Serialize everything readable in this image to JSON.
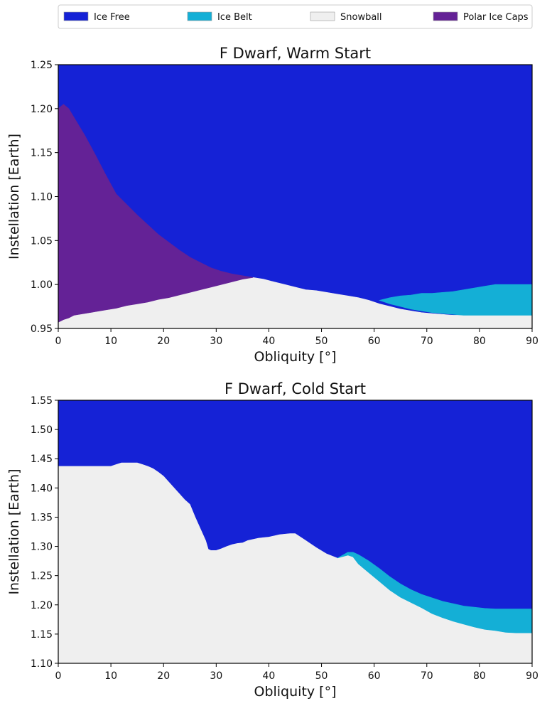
{
  "colors": {
    "ice_free": "#1522d6",
    "ice_belt": "#14afd6",
    "snowball": "#efefef",
    "polar_ice_caps": "#642296"
  },
  "legend": {
    "placement": "top",
    "entries": [
      {
        "label": "Ice Free",
        "color": "#1522d6"
      },
      {
        "label": "Ice Belt",
        "color": "#14afd6"
      },
      {
        "label": "Snowball",
        "color": "#efefef"
      },
      {
        "label": "Polar Ice Caps",
        "color": "#642296"
      }
    ]
  },
  "chart_data": [
    {
      "type": "area",
      "title": "F Dwarf, Warm Start",
      "xlabel": "Obliquity [°]",
      "ylabel": "Instellation [Earth]",
      "xlim": [
        0,
        90
      ],
      "ylim": [
        0.95,
        1.25
      ],
      "xticks": [
        "0",
        "10",
        "20",
        "30",
        "40",
        "50",
        "60",
        "70",
        "80",
        "90"
      ],
      "yticks": [
        "0.95",
        "1.00",
        "1.05",
        "1.10",
        "1.15",
        "1.20",
        "1.25"
      ],
      "grid": false,
      "background_region": "Ice Free",
      "regions": [
        {
          "name": "Snowball",
          "x": [
            0,
            1,
            2,
            3,
            5,
            7,
            9,
            11,
            13,
            15,
            17,
            19,
            21,
            23,
            25,
            27,
            29,
            31,
            33,
            35,
            37,
            39,
            41,
            43,
            45,
            47,
            49,
            51,
            53,
            55,
            57,
            59,
            61,
            63,
            65,
            67,
            69,
            71,
            73,
            75,
            77,
            79,
            81,
            83,
            85,
            87,
            90
          ],
          "upper": [
            0.957,
            0.96,
            0.962,
            0.965,
            0.967,
            0.969,
            0.971,
            0.973,
            0.976,
            0.978,
            0.98,
            0.983,
            0.985,
            0.988,
            0.991,
            0.994,
            0.997,
            1.0,
            1.003,
            1.006,
            1.008,
            1.006,
            1.003,
            1.0,
            0.997,
            0.994,
            0.993,
            0.991,
            0.989,
            0.987,
            0.985,
            0.982,
            0.978,
            0.975,
            0.972,
            0.97,
            0.968,
            0.967,
            0.966,
            0.965,
            0.965,
            0.965,
            0.965,
            0.965,
            0.965,
            0.965,
            0.965
          ]
        },
        {
          "name": "Polar Ice Caps",
          "x": [
            0,
            1,
            2,
            3,
            5,
            7,
            9,
            11,
            13,
            15,
            17,
            19,
            21,
            23,
            25,
            27,
            29,
            31,
            33,
            35,
            37
          ],
          "lower": [
            0.957,
            0.96,
            0.962,
            0.965,
            0.967,
            0.969,
            0.971,
            0.973,
            0.976,
            0.978,
            0.98,
            0.983,
            0.985,
            0.988,
            0.991,
            0.994,
            0.997,
            1.0,
            1.003,
            1.006,
            1.008
          ],
          "upper": [
            1.2,
            1.205,
            1.2,
            1.19,
            1.17,
            1.148,
            1.125,
            1.103,
            1.091,
            1.079,
            1.068,
            1.057,
            1.048,
            1.039,
            1.031,
            1.025,
            1.019,
            1.015,
            1.012,
            1.01,
            1.008
          ]
        },
        {
          "name": "Ice Belt",
          "x": [
            61,
            63,
            65,
            67,
            69,
            71,
            73,
            75,
            77,
            79,
            81,
            83,
            85,
            87,
            90
          ],
          "lower": [
            0.982,
            0.978,
            0.975,
            0.972,
            0.97,
            0.968,
            0.967,
            0.966,
            0.965,
            0.965,
            0.965,
            0.965,
            0.965,
            0.965,
            0.965
          ],
          "upper": [
            0.982,
            0.985,
            0.987,
            0.988,
            0.99,
            0.99,
            0.991,
            0.992,
            0.994,
            0.996,
            0.998,
            1.0,
            1.0,
            1.0,
            1.0
          ]
        }
      ]
    },
    {
      "type": "area",
      "title": "F Dwarf, Cold Start",
      "xlabel": "Obliquity [°]",
      "ylabel": "Instellation [Earth]",
      "xlim": [
        0,
        90
      ],
      "ylim": [
        1.1,
        1.55
      ],
      "xticks": [
        "0",
        "10",
        "20",
        "30",
        "40",
        "50",
        "60",
        "70",
        "80",
        "90"
      ],
      "yticks": [
        "1.10",
        "1.15",
        "1.20",
        "1.25",
        "1.30",
        "1.35",
        "1.40",
        "1.45",
        "1.50",
        "1.55"
      ],
      "grid": false,
      "background_region": "Ice Free",
      "regions": [
        {
          "name": "Snowball",
          "x": [
            0,
            5,
            10,
            11,
            12,
            15,
            16,
            17,
            18,
            19,
            20,
            21,
            22,
            23,
            24,
            25,
            26,
            27,
            28,
            28.5,
            29,
            30,
            31,
            32,
            33,
            34,
            35,
            36,
            37,
            38,
            39,
            40,
            41,
            42,
            43,
            44,
            45,
            47,
            49,
            51,
            53,
            55,
            56,
            57,
            59,
            61,
            63,
            65,
            67,
            69,
            71,
            73,
            75,
            77,
            79,
            81,
            83,
            85,
            87,
            88,
            90
          ],
          "upper": [
            1.437,
            1.437,
            1.437,
            1.44,
            1.443,
            1.443,
            1.44,
            1.437,
            1.433,
            1.427,
            1.42,
            1.41,
            1.4,
            1.39,
            1.38,
            1.372,
            1.35,
            1.33,
            1.31,
            1.295,
            1.293,
            1.293,
            1.296,
            1.3,
            1.303,
            1.305,
            1.306,
            1.31,
            1.312,
            1.314,
            1.315,
            1.316,
            1.318,
            1.32,
            1.321,
            1.322,
            1.322,
            1.31,
            1.298,
            1.287,
            1.28,
            1.285,
            1.282,
            1.27,
            1.255,
            1.24,
            1.225,
            1.213,
            1.204,
            1.195,
            1.185,
            1.178,
            1.172,
            1.167,
            1.162,
            1.158,
            1.156,
            1.153,
            1.152,
            1.152,
            1.152
          ]
        },
        {
          "name": "Ice Belt",
          "x": [
            53,
            55,
            56,
            57,
            59,
            61,
            63,
            65,
            67,
            69,
            71,
            73,
            75,
            77,
            79,
            81,
            83,
            85,
            87,
            88,
            90
          ],
          "lower": [
            1.28,
            1.285,
            1.282,
            1.27,
            1.255,
            1.24,
            1.225,
            1.213,
            1.204,
            1.195,
            1.185,
            1.178,
            1.172,
            1.167,
            1.162,
            1.158,
            1.156,
            1.153,
            1.152,
            1.152,
            1.152
          ],
          "upper": [
            1.28,
            1.29,
            1.29,
            1.286,
            1.275,
            1.262,
            1.248,
            1.236,
            1.226,
            1.218,
            1.212,
            1.206,
            1.202,
            1.198,
            1.196,
            1.194,
            1.193,
            1.193,
            1.193,
            1.193,
            1.193
          ]
        }
      ]
    }
  ]
}
